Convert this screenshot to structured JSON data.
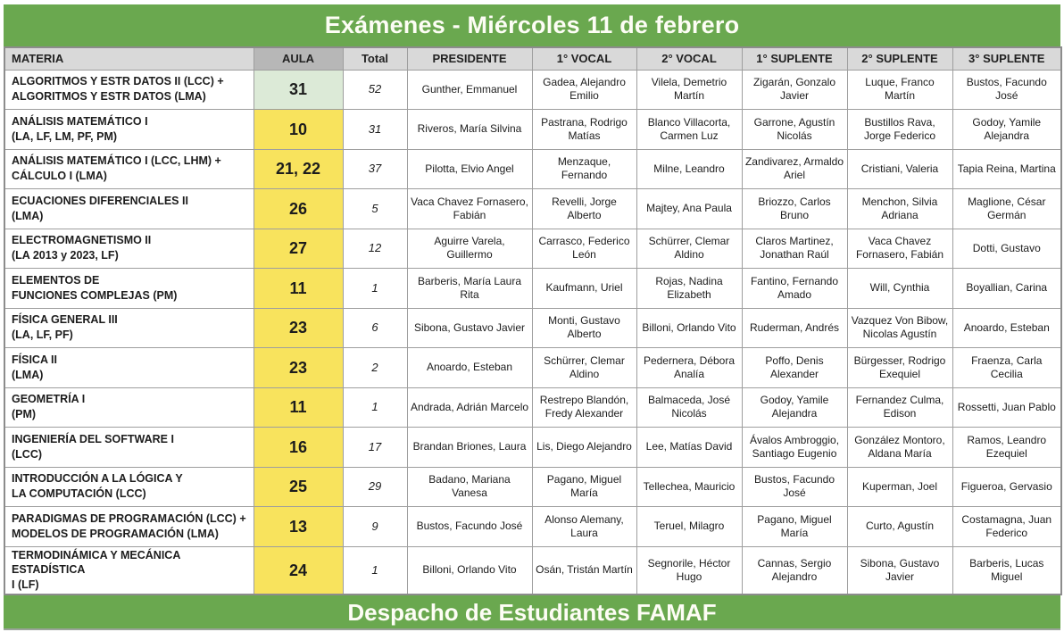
{
  "title": "Exámenes - Miércoles 11 de febrero",
  "footer": "Despacho de Estudiantes FAMAF",
  "colors": {
    "title_green": "#6aa84f",
    "header_gray": "#d9d9d9",
    "aula_header_gray": "#b7b7b7",
    "aula_yellow": "#f8e35d",
    "aula_green_highlight": "#dcead7",
    "border_gray": "#9e9e9e"
  },
  "columns": [
    "MATERIA",
    "AULA",
    "Total",
    "PRESIDENTE",
    "1° VOCAL",
    "2° VOCAL",
    "1° SUPLENTE",
    "2° SUPLENTE",
    "3° SUPLENTE"
  ],
  "rows": [
    {
      "materia": [
        "ALGORITMOS Y ESTR DATOS II (LCC) +",
        "ALGORITMOS Y ESTR DATOS (LMA)"
      ],
      "aula": "31",
      "aula_style": "green",
      "total": "52",
      "presidente": "Gunther, Emmanuel",
      "vocal1": "Gadea, Alejandro Emilio",
      "vocal2": "Vilela, Demetrio Martín",
      "suplente1": "Zigarán, Gonzalo Javier",
      "suplente2": "Luque, Franco Martín",
      "suplente3": "Bustos, Facundo José"
    },
    {
      "materia": [
        "ANÁLISIS MATEMÁTICO I",
        "(LA, LF, LM, PF, PM)"
      ],
      "aula": "10",
      "aula_style": "yellow",
      "total": "31",
      "presidente": "Riveros, María Silvina",
      "vocal1": "Pastrana, Rodrigo Matías",
      "vocal2": "Blanco Villacorta, Carmen Luz",
      "suplente1": "Garrone, Agustín Nicolás",
      "suplente2": "Bustillos Rava, Jorge Federico",
      "suplente3": "Godoy, Yamile Alejandra"
    },
    {
      "materia": [
        "ANÁLISIS MATEMÁTICO I (LCC, LHM) +",
        "CÁLCULO I (LMA)"
      ],
      "aula": "21, 22",
      "aula_style": "yellow",
      "total": "37",
      "presidente": "Pilotta, Elvio Angel",
      "vocal1": "Menzaque, Fernando",
      "vocal2": "Milne, Leandro",
      "suplente1": "Zandivarez, Armaldo Ariel",
      "suplente2": "Cristiani, Valeria",
      "suplente3": "Tapia Reina, Martina"
    },
    {
      "materia": [
        "ECUACIONES DIFERENCIALES II",
        "(LMA)"
      ],
      "aula": "26",
      "aula_style": "yellow",
      "total": "5",
      "presidente": "Vaca Chavez Fornasero, Fabián",
      "vocal1": "Revelli, Jorge Alberto",
      "vocal2": "Majtey, Ana Paula",
      "suplente1": "Briozzo, Carlos Bruno",
      "suplente2": "Menchon, Silvia Adriana",
      "suplente3": "Maglione, César Germán"
    },
    {
      "materia": [
        "ELECTROMAGNETISMO II",
        "(LA 2013 y 2023, LF)"
      ],
      "aula": "27",
      "aula_style": "yellow",
      "total": "12",
      "presidente": "Aguirre Varela, Guillermo",
      "vocal1": "Carrasco, Federico León",
      "vocal2": "Schürrer, Clemar Aldino",
      "suplente1": "Claros Martinez, Jonathan Raúl",
      "suplente2": "Vaca Chavez Fornasero, Fabián",
      "suplente3": "Dotti, Gustavo"
    },
    {
      "materia": [
        "ELEMENTOS DE",
        "FUNCIONES COMPLEJAS (PM)"
      ],
      "aula": "11",
      "aula_style": "yellow",
      "total": "1",
      "presidente": "Barberis, María Laura Rita",
      "vocal1": "Kaufmann, Uriel",
      "vocal2": "Rojas, Nadina Elizabeth",
      "suplente1": "Fantino, Fernando Amado",
      "suplente2": "Will, Cynthia",
      "suplente3": "Boyallian, Carina"
    },
    {
      "materia": [
        "FÍSICA GENERAL III",
        "(LA, LF, PF)"
      ],
      "aula": "23",
      "aula_style": "yellow",
      "total": "6",
      "presidente": "Sibona, Gustavo Javier",
      "vocal1": "Monti, Gustavo Alberto",
      "vocal2": "Billoni, Orlando Vito",
      "suplente1": "Ruderman, Andrés",
      "suplente2": "Vazquez Von Bibow, Nicolas Agustín",
      "suplente3": "Anoardo, Esteban"
    },
    {
      "materia": [
        "FÍSICA II",
        "(LMA)"
      ],
      "aula": "23",
      "aula_style": "yellow",
      "total": "2",
      "presidente": "Anoardo, Esteban",
      "vocal1": "Schürrer, Clemar Aldino",
      "vocal2": "Pedernera, Débora Analía",
      "suplente1": "Poffo, Denis Alexander",
      "suplente2": "Bürgesser, Rodrigo Exequiel",
      "suplente3": "Fraenza, Carla Cecilia"
    },
    {
      "materia": [
        "GEOMETRÍA I",
        "(PM)"
      ],
      "aula": "11",
      "aula_style": "yellow",
      "total": "1",
      "presidente": "Andrada, Adrián Marcelo",
      "vocal1": "Restrepo Blandón, Fredy Alexander",
      "vocal2": "Balmaceda, José Nicolás",
      "suplente1": "Godoy, Yamile Alejandra",
      "suplente2": "Fernandez Culma, Edison",
      "suplente3": "Rossetti, Juan Pablo"
    },
    {
      "materia": [
        "INGENIERÍA DEL SOFTWARE I",
        "(LCC)"
      ],
      "aula": "16",
      "aula_style": "yellow",
      "total": "17",
      "presidente": "Brandan Briones, Laura",
      "vocal1": "Lis, Diego Alejandro",
      "vocal2": "Lee, Matías David",
      "suplente1": "Ávalos Ambroggio, Santiago Eugenio",
      "suplente2": "González Montoro, Aldana María",
      "suplente3": "Ramos, Leandro Ezequiel"
    },
    {
      "materia": [
        "INTRODUCCIÓN A LA LÓGICA Y",
        "LA COMPUTACIÓN (LCC)"
      ],
      "aula": "25",
      "aula_style": "yellow",
      "total": "29",
      "presidente": "Badano, Mariana Vanesa",
      "vocal1": "Pagano, Miguel María",
      "vocal2": "Tellechea, Mauricio",
      "suplente1": "Bustos, Facundo José",
      "suplente2": "Kuperman, Joel",
      "suplente3": "Figueroa, Gervasio"
    },
    {
      "materia": [
        "PARADIGMAS DE PROGRAMACIÓN (LCC) +",
        "MODELOS DE PROGRAMACIÓN (LMA)"
      ],
      "aula": "13",
      "aula_style": "yellow",
      "total": "9",
      "presidente": "Bustos, Facundo José",
      "vocal1": "Alonso Alemany, Laura",
      "vocal2": "Teruel, Milagro",
      "suplente1": "Pagano, Miguel María",
      "suplente2": "Curto, Agustín",
      "suplente3": "Costamagna, Juan Federico"
    },
    {
      "materia": [
        "TERMODINÁMICA Y MECÁNICA ESTADÍSTICA",
        "I (LF)"
      ],
      "aula": "24",
      "aula_style": "yellow",
      "total": "1",
      "presidente": "Billoni, Orlando Vito",
      "vocal1": "Osán, Tristán Martín",
      "vocal2": "Segnorile, Héctor Hugo",
      "suplente1": "Cannas, Sergio Alejandro",
      "suplente2": "Sibona, Gustavo Javier",
      "suplente3": "Barberis, Lucas Miguel"
    }
  ]
}
